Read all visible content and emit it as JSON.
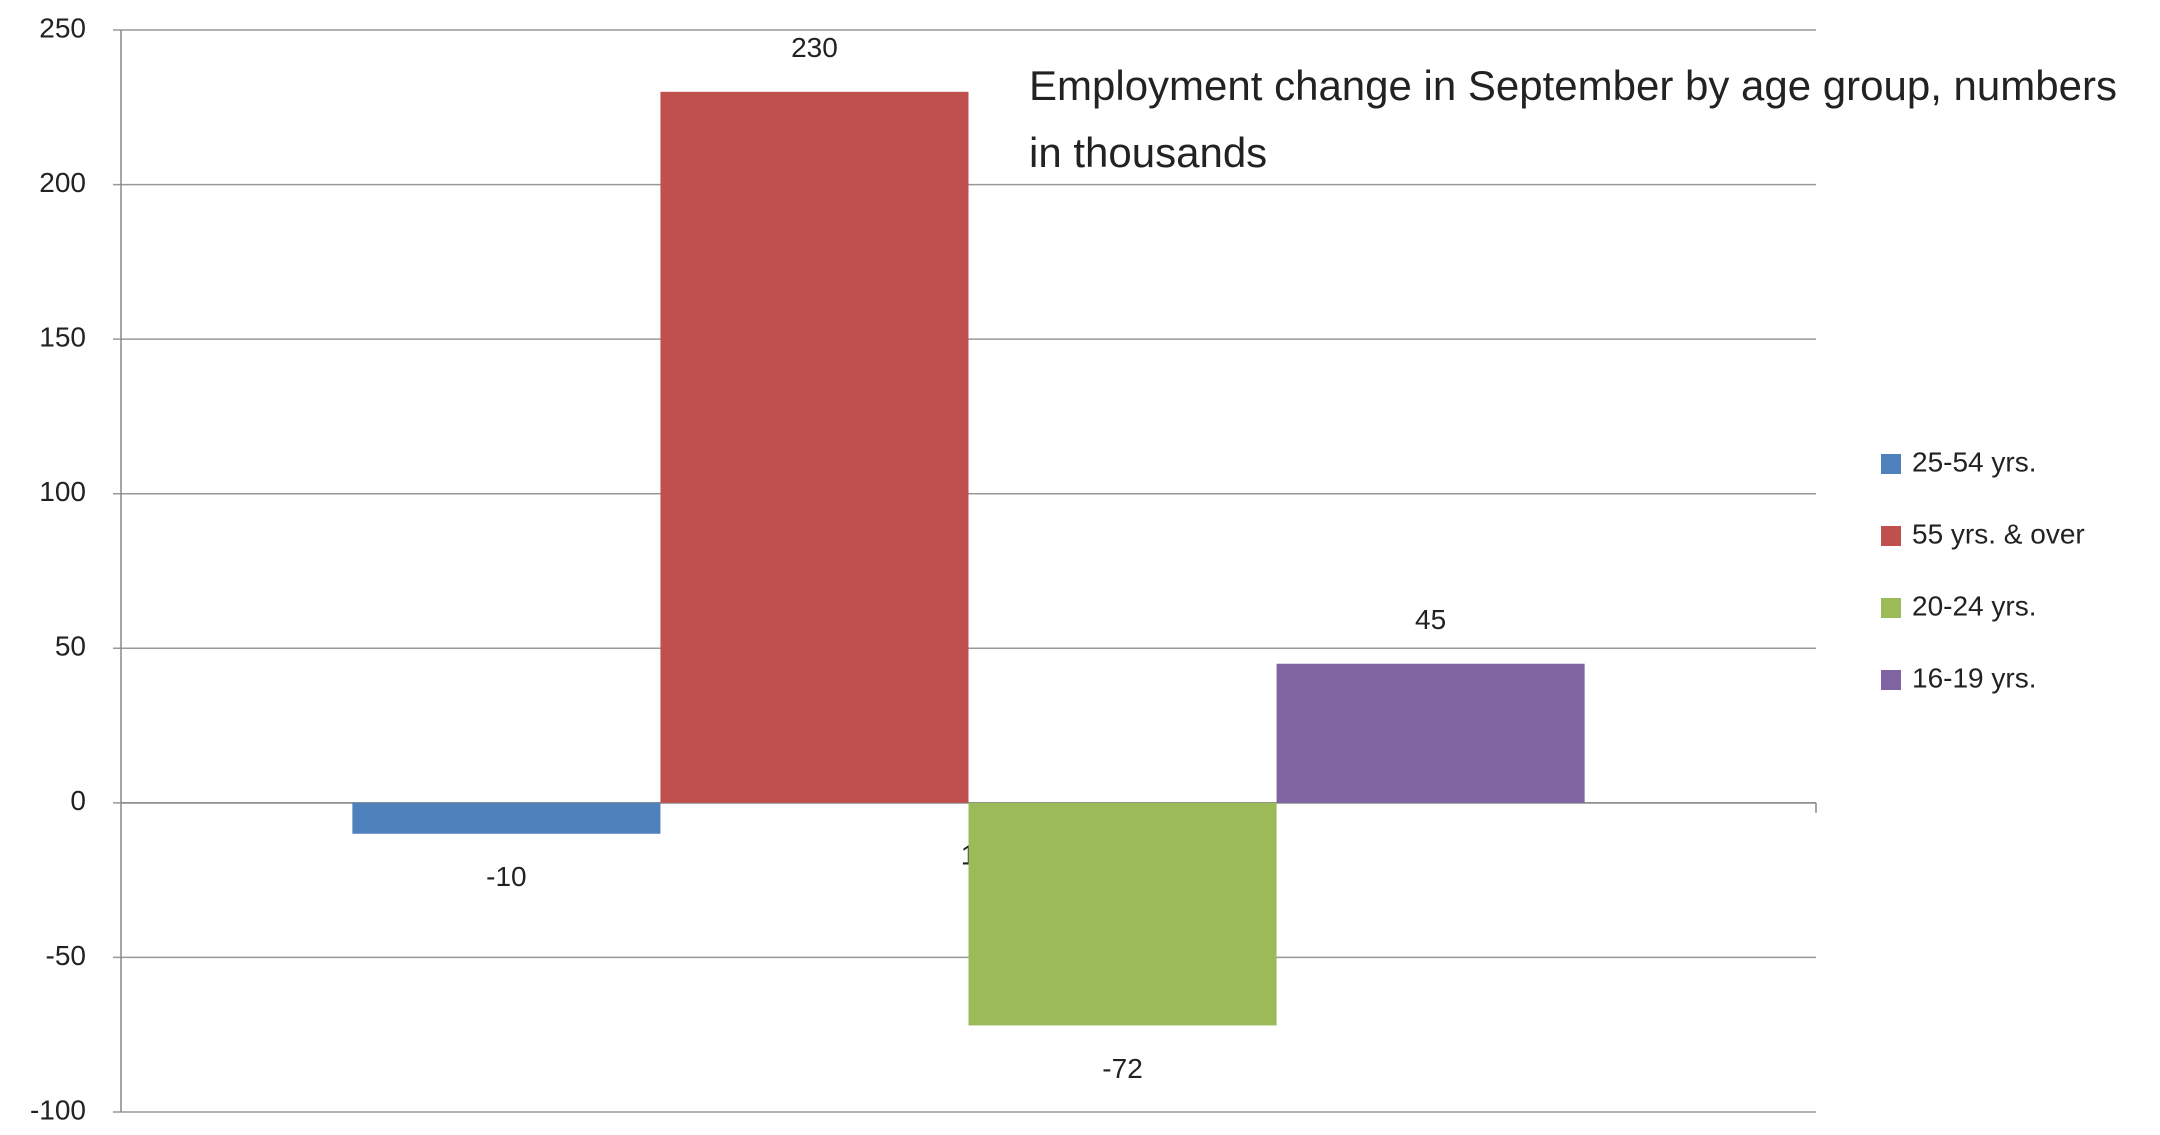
{
  "chart_data": {
    "type": "bar",
    "title": "Employment change in September by age group, numbers in thousands",
    "categories": [
      "1"
    ],
    "series": [
      {
        "name": "25-54 yrs.",
        "color": "#4f81bd",
        "values": [
          -10
        ]
      },
      {
        "name": "55 yrs. & over",
        "color": "#c0504d",
        "values": [
          230
        ]
      },
      {
        "name": "20-24 yrs.",
        "color": "#9bbb59",
        "values": [
          -72
        ]
      },
      {
        "name": "16-19 yrs.",
        "color": "#8064a2",
        "values": [
          45
        ]
      }
    ],
    "ylim": [
      -100,
      250
    ],
    "yticks": [
      -100,
      -50,
      0,
      50,
      100,
      150,
      200,
      250
    ],
    "grid": true,
    "legend": "right"
  }
}
